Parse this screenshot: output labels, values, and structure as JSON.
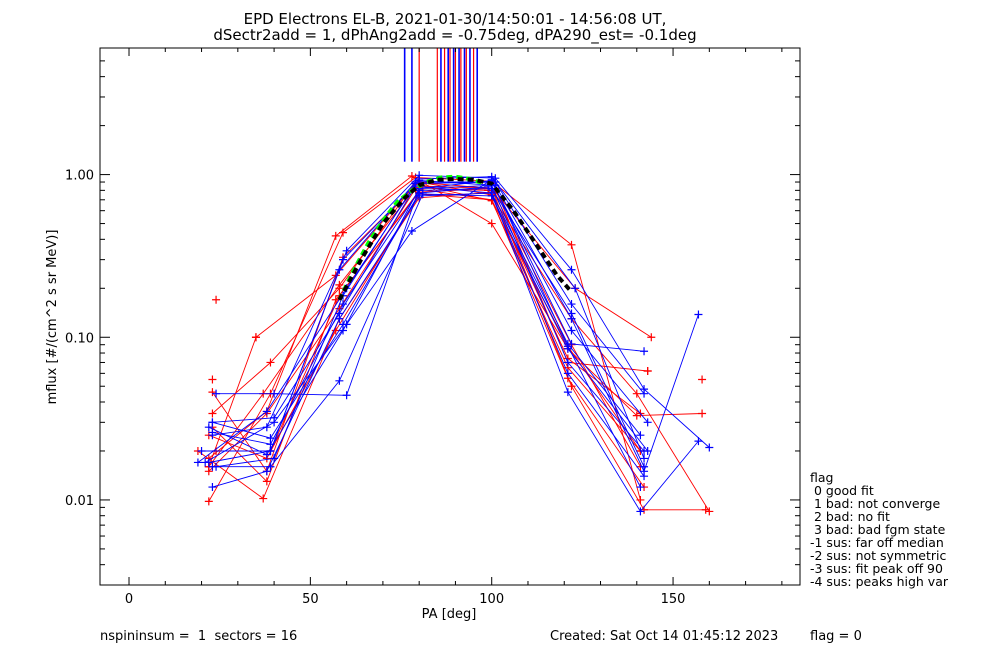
{
  "chart_data": {
    "type": "line",
    "title": "EPD Electrons EL-B, 2021-01-30/14:50:01 - 14:56:08 UT,",
    "subtitle": "dSectr2add = 1, dPhAng2add = -0.75deg, dPA290_est=  -0.1deg",
    "xlabel": "PA [deg]",
    "ylabel": "mflux [#/(cm^2 s sr MeV)]",
    "xlim": [
      -8,
      185
    ],
    "ylim": [
      0.003,
      6
    ],
    "yscale": "log",
    "x_ticks": [
      "0",
      "50",
      "100",
      "150"
    ],
    "x_tick_values": [
      0,
      50,
      100,
      150
    ],
    "y_ticks": [
      "0.01",
      "0.10",
      "1.00"
    ],
    "y_tick_values": [
      0.01,
      0.1,
      1.0
    ],
    "colors": {
      "series_a": "#ff0000",
      "series_b": "#0000ff",
      "fit": "#000000",
      "model": "#00ff00"
    },
    "vertical_markers": {
      "y_from": 1.2,
      "y_to": 6,
      "blue_x": [
        76,
        78,
        86,
        88,
        89.5,
        91,
        92.5,
        94,
        96
      ],
      "red_x": [
        80,
        85,
        87,
        88.5,
        90,
        91.5,
        93,
        95
      ]
    },
    "series": [
      {
        "color": "red",
        "x": [
          22,
          38,
          57,
          78,
          100,
          121,
          140,
          158
        ],
        "y": [
          0.018,
          0.035,
          0.42,
          0.98,
          0.5,
          0.085,
          0.033,
          0.034
        ]
      },
      {
        "color": "red",
        "x": [
          23,
          39,
          58,
          79,
          100,
          122,
          141
        ],
        "y": [
          0.034,
          0.07,
          0.2,
          0.9,
          0.82,
          0.09,
          0.016
        ]
      },
      {
        "color": "red",
        "x": [
          22,
          39,
          59,
          79,
          100,
          122,
          141
        ],
        "y": [
          0.0098,
          0.045,
          0.44,
          0.96,
          0.91,
          0.37,
          0.01
        ]
      },
      {
        "color": "red",
        "x": [
          22,
          38,
          58,
          79,
          100,
          121,
          142
        ],
        "y": [
          0.015,
          0.034,
          0.15,
          0.82,
          0.7,
          0.056,
          0.012
        ]
      },
      {
        "color": "red",
        "x": [
          23,
          38,
          57,
          80,
          100,
          122,
          142,
          159
        ],
        "y": [
          0.028,
          0.013,
          0.17,
          0.78,
          0.82,
          0.05,
          0.0087,
          0.0087
        ]
      },
      {
        "color": "red",
        "x": [
          22,
          35,
          57,
          79,
          100,
          121,
          141
        ],
        "y": [
          0.016,
          0.1,
          0.24,
          0.88,
          0.69,
          0.065,
          0.02
        ]
      },
      {
        "color": "red",
        "x": [
          19,
          37,
          58,
          80,
          101,
          123,
          144
        ],
        "y": [
          0.02,
          0.0102,
          0.13,
          0.72,
          0.78,
          0.2,
          0.1
        ]
      },
      {
        "color": "red",
        "x": [
          23,
          38,
          59,
          80,
          100,
          121,
          141
        ],
        "y": [
          0.046,
          0.015,
          0.31,
          0.9,
          0.75,
          0.074,
          0.034
        ]
      },
      {
        "color": "red",
        "x": [
          24,
          39,
          58,
          81,
          101,
          121,
          143
        ],
        "y": [
          0.02,
          0.02,
          0.18,
          0.85,
          0.82,
          0.07,
          0.062
        ]
      },
      {
        "color": "red",
        "x": [
          22,
          37,
          58,
          79,
          99,
          122,
          140,
          160
        ],
        "y": [
          0.016,
          0.045,
          0.21,
          0.83,
          0.8,
          0.13,
          0.045,
          0.0085
        ]
      },
      {
        "color": "red",
        "x": [
          22,
          38,
          57,
          80,
          100,
          121,
          141
        ],
        "y": [
          0.025,
          0.018,
          0.11,
          0.76,
          0.7,
          0.088,
          0.02
        ]
      },
      {
        "color": "blue",
        "x": [
          20,
          39,
          60,
          80,
          101,
          122,
          142,
          160
        ],
        "y": [
          0.02,
          0.02,
          0.34,
          0.99,
          0.95,
          0.26,
          0.048,
          0.021
        ]
      },
      {
        "color": "blue",
        "x": [
          23,
          38,
          58,
          80,
          100,
          121,
          141,
          157
        ],
        "y": [
          0.012,
          0.015,
          0.13,
          0.74,
          0.77,
          0.046,
          0.0085,
          0.023
        ]
      },
      {
        "color": "blue",
        "x": [
          24,
          40,
          60,
          80,
          100,
          122,
          142
        ],
        "y": [
          0.045,
          0.045,
          0.044,
          0.82,
          0.92,
          0.091,
          0.082
        ]
      },
      {
        "color": "blue",
        "x": [
          23,
          39,
          58,
          81,
          100,
          121,
          143
        ],
        "y": [
          0.016,
          0.016,
          0.054,
          0.76,
          0.74,
          0.085,
          0.02
        ]
      },
      {
        "color": "blue",
        "x": [
          22,
          38,
          59,
          80,
          101,
          122,
          142,
          157
        ],
        "y": [
          0.028,
          0.019,
          0.11,
          0.82,
          0.86,
          0.13,
          0.015,
          0.138
        ]
      },
      {
        "color": "blue",
        "x": [
          23,
          39,
          59,
          80,
          99,
          121,
          142
        ],
        "y": [
          0.03,
          0.024,
          0.12,
          0.77,
          0.84,
          0.06,
          0.014
        ]
      },
      {
        "color": "blue",
        "x": [
          23,
          40,
          58,
          79,
          100,
          121,
          141
        ],
        "y": [
          0.03,
          0.032,
          0.14,
          0.85,
          0.77,
          0.091,
          0.025
        ]
      },
      {
        "color": "blue",
        "x": [
          19,
          38,
          60,
          80,
          100,
          123,
          142
        ],
        "y": [
          0.017,
          0.035,
          0.2,
          0.94,
          0.97,
          0.2,
          0.018
        ]
      },
      {
        "color": "blue",
        "x": [
          24,
          40,
          59,
          79,
          101,
          122,
          142
        ],
        "y": [
          0.016,
          0.018,
          0.18,
          0.88,
          0.9,
          0.16,
          0.045
        ]
      },
      {
        "color": "blue",
        "x": [
          23,
          38,
          59,
          80,
          100,
          121,
          142
        ],
        "y": [
          0.025,
          0.028,
          0.3,
          0.92,
          0.86,
          0.07,
          0.02
        ]
      },
      {
        "color": "blue",
        "x": [
          22,
          39,
          58,
          79,
          100,
          122,
          143
        ],
        "y": [
          0.017,
          0.02,
          0.26,
          0.9,
          0.9,
          0.11,
          0.03
        ]
      },
      {
        "color": "blue",
        "x": [
          21,
          40,
          60,
          78,
          100,
          121,
          141
        ],
        "y": [
          0.017,
          0.03,
          0.12,
          0.45,
          0.93,
          0.088,
          0.012
        ]
      },
      {
        "color": "blue",
        "x": [
          23,
          39,
          59,
          80,
          100,
          122,
          142
        ],
        "y": [
          0.026,
          0.022,
          0.16,
          0.8,
          0.82,
          0.14,
          0.016
        ]
      }
    ],
    "red_extra_points": {
      "x": [
        24,
        23,
        35,
        158,
        143
      ],
      "y": [
        0.17,
        0.055,
        0.1,
        0.055,
        0.062
      ]
    },
    "fit_curve": {
      "color": "black",
      "style": "dashed",
      "x": [
        58,
        64,
        70,
        76,
        80,
        85,
        90,
        95,
        100,
        106,
        112,
        118,
        122
      ],
      "y": [
        0.17,
        0.3,
        0.5,
        0.72,
        0.86,
        0.93,
        0.94,
        0.93,
        0.88,
        0.6,
        0.38,
        0.24,
        0.19
      ]
    },
    "model_curve": {
      "color": "green",
      "style": "dashed",
      "x": [
        58,
        62,
        66,
        70,
        74,
        78,
        82,
        86,
        90,
        94,
        98
      ],
      "y": [
        0.17,
        0.26,
        0.38,
        0.52,
        0.68,
        0.8,
        0.9,
        0.96,
        0.97,
        0.94,
        0.88
      ]
    }
  },
  "legend": {
    "title": "flag",
    "items": [
      " 0 good fit",
      " 1 bad: not converge",
      " 2 bad: no fit",
      " 3 bad: bad fgm state",
      "-1 sus: far off median",
      "-2 sus: not symmetric",
      "-3 sus: fit peak off 90",
      "-4 sus: peaks high var"
    ]
  },
  "footer": {
    "left": "nspininsum =  1  sectors = 16",
    "created": "Created: Sat Oct 14 01:45:12 2023",
    "flag": "flag = 0"
  }
}
